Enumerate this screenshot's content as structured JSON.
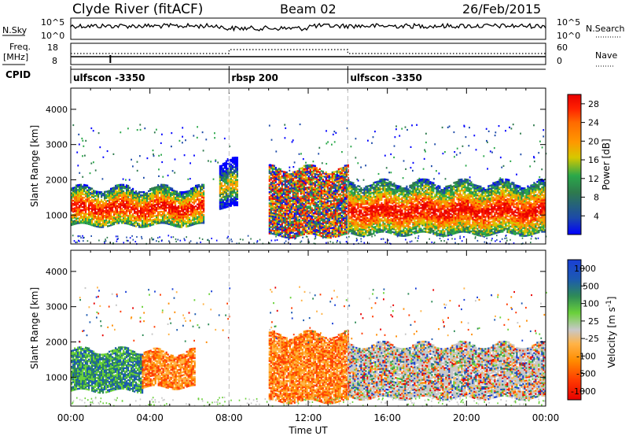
{
  "header": {
    "station": "Clyde River (fitACF)",
    "beam": "Beam 02",
    "date": "26/Feb/2015"
  },
  "status_panels": {
    "nsky_label": "N.Sky",
    "nsky_ticks": [
      "10^5",
      "10^0"
    ],
    "nsearch_label": "N.Search",
    "nsearch_ticks": [
      "10^5",
      "10^0"
    ],
    "freq_label": "Freq.",
    "freq_unit": "[MHz]",
    "freq_ticks": [
      "18",
      "8"
    ],
    "nave_label": "Nave",
    "nave_ticks": [
      "60",
      "0"
    ],
    "cpid_label": "CPID"
  },
  "cpid_segments": [
    {
      "label": "ulfscon -3350",
      "start": "00:00",
      "end": "08:00"
    },
    {
      "label": "rbsp 200",
      "start": "08:00",
      "end": "14:00"
    },
    {
      "label": "ulfscon -3350",
      "start": "14:00",
      "end": "24:00"
    }
  ],
  "colors": {
    "power_scale": [
      "#0000ff",
      "#1c4aa8",
      "#2e7a4d",
      "#2aa84a",
      "#d6c800",
      "#ff9800",
      "#ff6a00",
      "#ff2000",
      "#e80000"
    ],
    "velocity_scale": [
      "#e80000",
      "#ff3b00",
      "#ff8c00",
      "#ffb347",
      "#c8c8c8",
      "#6ad13a",
      "#2e8b57",
      "#1c5ab0",
      "#1a3fd6"
    ]
  },
  "chart_data": [
    {
      "type": "heatmap",
      "title": "Power",
      "xlabel": "",
      "ylabel": "Slant Range [km]",
      "x_ticks": [
        "00:00",
        "04:00",
        "08:00",
        "12:00",
        "16:00",
        "20:00",
        "00:00"
      ],
      "y_ticks": [
        "1000",
        "2000",
        "3000",
        "4000"
      ],
      "xlim_hours": [
        0,
        24
      ],
      "ylim_km": [
        180,
        4600
      ],
      "colorbar_label": "Power [dB]",
      "colorbar_ticks": [
        "4",
        "8",
        "12",
        "16",
        "20",
        "24",
        "28"
      ],
      "colorbar_range": [
        0,
        30
      ],
      "echo_regions": [
        {
          "start_h": 0.0,
          "end_h": 6.7,
          "range_km": [
            700,
            1750
          ],
          "level": "high"
        },
        {
          "start_h": 7.5,
          "end_h": 8.4,
          "range_km": [
            1200,
            2500
          ],
          "level": "medium"
        },
        {
          "start_h": 10.0,
          "end_h": 14.0,
          "range_km": [
            400,
            2300
          ],
          "level": "mixed"
        },
        {
          "start_h": 14.0,
          "end_h": 24.0,
          "range_km": [
            450,
            1900
          ],
          "level": "high"
        }
      ]
    },
    {
      "type": "heatmap",
      "title": "Velocity",
      "xlabel": "Time UT",
      "ylabel": "Slant Range [km]",
      "x_ticks": [
        "00:00",
        "04:00",
        "08:00",
        "12:00",
        "16:00",
        "20:00",
        "00:00"
      ],
      "y_ticks": [
        "1000",
        "2000",
        "3000",
        "4000"
      ],
      "xlim_hours": [
        0,
        24
      ],
      "ylim_km": [
        180,
        4600
      ],
      "colorbar_label": "Velocity [m s^-1]",
      "colorbar_ticks": [
        "1000",
        "500",
        "100",
        "25",
        "-25",
        "-100",
        "-500",
        "-1000"
      ],
      "echo_regions": [
        {
          "start_h": 0.0,
          "end_h": 3.6,
          "range_km": [
            600,
            1750
          ],
          "dominant": "100 to 500"
        },
        {
          "start_h": 3.6,
          "end_h": 6.3,
          "range_km": [
            700,
            1700
          ],
          "dominant": "-500 to -100"
        },
        {
          "start_h": 10.0,
          "end_h": 14.0,
          "range_km": [
            300,
            2200
          ],
          "dominant": "-500 to -100"
        },
        {
          "start_h": 14.0,
          "end_h": 24.0,
          "range_km": [
            400,
            1900
          ],
          "dominant": "mixed"
        }
      ]
    }
  ]
}
